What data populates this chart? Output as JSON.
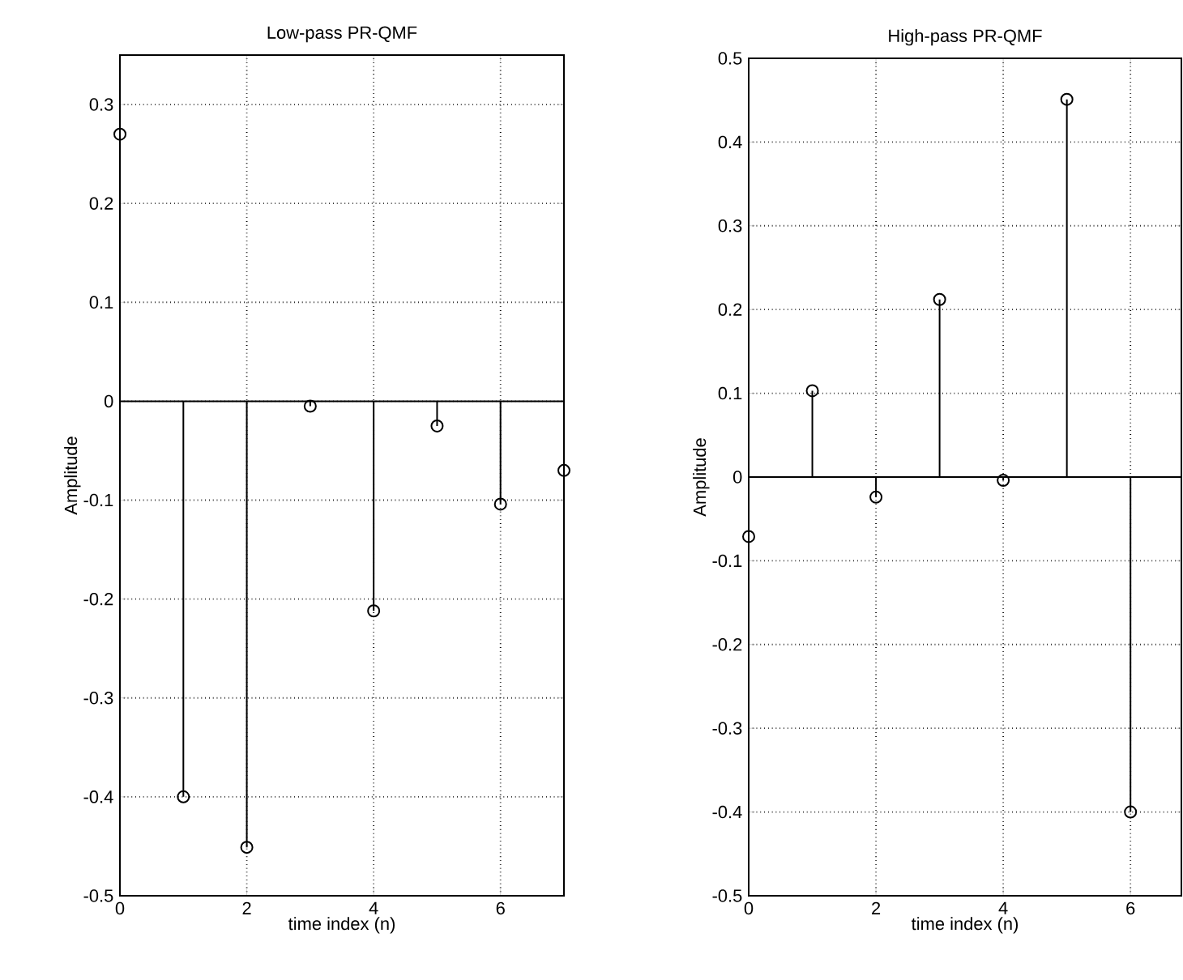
{
  "chart_data": [
    {
      "type": "lollipop",
      "title": "Low-pass PR-QMF",
      "xlabel": "time index (n)",
      "ylabel": "Amplitude",
      "color": "#000000",
      "marker": "circle",
      "grid": true,
      "x": [
        0,
        1,
        2,
        3,
        4,
        5,
        6,
        7
      ],
      "values": [
        0.27,
        -0.4,
        -0.451,
        -0.005,
        -0.212,
        -0.025,
        -0.104,
        -0.07
      ],
      "ref_lines": [
        {
          "axis": "y",
          "value": 0
        }
      ],
      "xlim": [
        0,
        7
      ],
      "ylim": [
        -0.5,
        0.35
      ],
      "xticks": [
        0,
        2,
        4,
        6
      ],
      "yticks": [
        -0.5,
        -0.4,
        -0.3,
        -0.2,
        -0.1,
        0,
        0.1,
        0.2,
        0.3
      ]
    },
    {
      "type": "lollipop",
      "title": "High-pass PR-QMF",
      "xlabel": "time index (n)",
      "ylabel": "Amplitude",
      "color": "#000000",
      "marker": "circle",
      "grid": true,
      "x": [
        0,
        1,
        2,
        3,
        4,
        5,
        6
      ],
      "values": [
        -0.071,
        0.103,
        -0.024,
        0.212,
        -0.004,
        0.451,
        -0.4
      ],
      "ref_lines": [
        {
          "axis": "y",
          "value": 0
        }
      ],
      "xlim": [
        0,
        6.8
      ],
      "ylim": [
        -0.5,
        0.5
      ],
      "xticks": [
        0,
        2,
        4,
        6
      ],
      "yticks": [
        -0.5,
        -0.4,
        -0.3,
        -0.2,
        -0.1,
        0,
        0.1,
        0.2,
        0.3,
        0.4,
        0.5
      ]
    }
  ]
}
